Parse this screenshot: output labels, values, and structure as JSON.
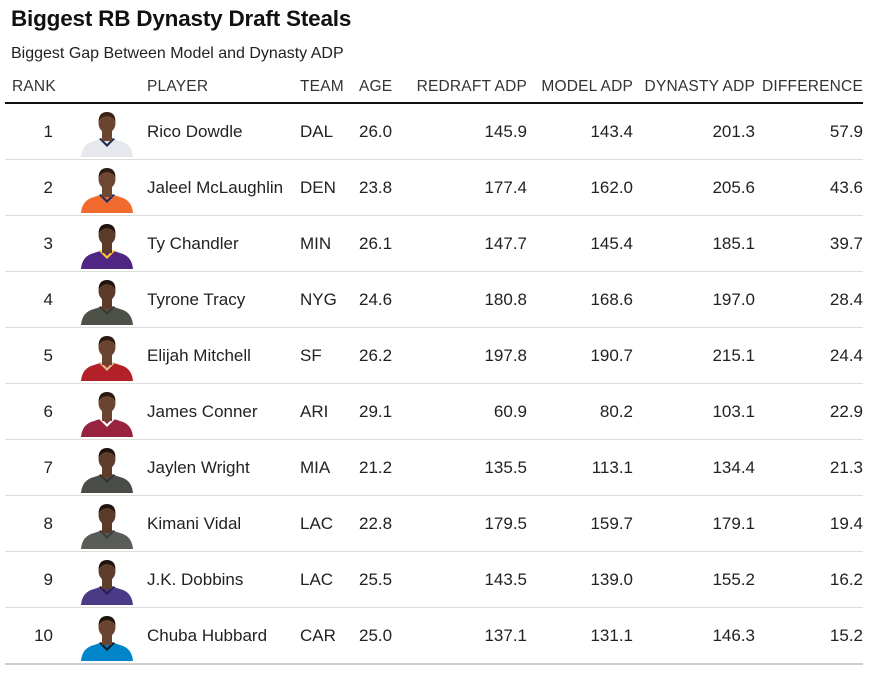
{
  "chart_data": {
    "type": "table",
    "title": "Biggest RB Dynasty Draft Steals",
    "subtitle": "Biggest Gap Between Model and Dynasty ADP",
    "columns": {
      "rank": "RANK",
      "player": "PLAYER",
      "team": "TEAM",
      "age": "AGE",
      "redraft_adp": "REDRAFT ADP",
      "model_adp": "MODEL ADP",
      "dynasty_adp": "DYNASTY ADP",
      "difference": "DIFFERENCE"
    },
    "rows": [
      {
        "rank": "1",
        "player": "Rico Dowdle",
        "team": "DAL",
        "age": "26.0",
        "redraft_adp": "145.9",
        "model_adp": "143.4",
        "dynasty_adp": "201.3",
        "difference": "57.9",
        "jersey": "#e6e8ee",
        "trim": "#1d2b4f",
        "skin": "#6b4530",
        "hair": "#3a2418"
      },
      {
        "rank": "2",
        "player": "Jaleel McLaughlin",
        "team": "DEN",
        "age": "23.8",
        "redraft_adp": "177.4",
        "model_adp": "162.0",
        "dynasty_adp": "205.6",
        "difference": "43.6",
        "jersey": "#f26b2e",
        "trim": "#1d2f5e",
        "skin": "#6e4733",
        "hair": "#2c1d15"
      },
      {
        "rank": "3",
        "player": "Ty Chandler",
        "team": "MIN",
        "age": "26.1",
        "redraft_adp": "147.7",
        "model_adp": "145.4",
        "dynasty_adp": "185.1",
        "difference": "39.7",
        "jersey": "#4f2683",
        "trim": "#ffc62f",
        "skin": "#5a3a28",
        "hair": "#1e140e"
      },
      {
        "rank": "4",
        "player": "Tyrone Tracy",
        "team": "NYG",
        "age": "24.6",
        "redraft_adp": "180.8",
        "model_adp": "168.6",
        "dynasty_adp": "197.0",
        "difference": "28.4",
        "jersey": "#4d5148",
        "trim": "#383b34",
        "skin": "#5c3b29",
        "hair": "#1e140e"
      },
      {
        "rank": "5",
        "player": "Elijah Mitchell",
        "team": "SF",
        "age": "26.2",
        "redraft_adp": "197.8",
        "model_adp": "190.7",
        "dynasty_adp": "215.1",
        "difference": "24.4",
        "jersey": "#b3202a",
        "trim": "#d8c28a",
        "skin": "#6a4431",
        "hair": "#2a1b13"
      },
      {
        "rank": "6",
        "player": "James Conner",
        "team": "ARI",
        "age": "29.1",
        "redraft_adp": "60.9",
        "model_adp": "80.2",
        "dynasty_adp": "103.1",
        "difference": "22.9",
        "jersey": "#97233f",
        "trim": "#ffffff",
        "skin": "#6b4532",
        "hair": "#2a1b13"
      },
      {
        "rank": "7",
        "player": "Jaylen Wright",
        "team": "MIA",
        "age": "21.2",
        "redraft_adp": "135.5",
        "model_adp": "113.1",
        "dynasty_adp": "134.4",
        "difference": "21.3",
        "jersey": "#4a4d47",
        "trim": "#333531",
        "skin": "#5e3d2b",
        "hair": "#1e140e"
      },
      {
        "rank": "8",
        "player": "Kimani Vidal",
        "team": "LAC",
        "age": "22.8",
        "redraft_adp": "179.5",
        "model_adp": "159.7",
        "dynasty_adp": "179.1",
        "difference": "19.4",
        "jersey": "#5a5d57",
        "trim": "#3c3e3a",
        "skin": "#5a3a28",
        "hair": "#1e140e"
      },
      {
        "rank": "9",
        "player": "J.K. Dobbins",
        "team": "LAC",
        "age": "25.5",
        "redraft_adp": "143.5",
        "model_adp": "139.0",
        "dynasty_adp": "155.2",
        "difference": "16.2",
        "jersey": "#4b3a86",
        "trim": "#2a1f55",
        "skin": "#5e3d2b",
        "hair": "#1e140e"
      },
      {
        "rank": "10",
        "player": "Chuba Hubbard",
        "team": "CAR",
        "age": "25.0",
        "redraft_adp": "137.1",
        "model_adp": "131.1",
        "dynasty_adp": "146.3",
        "difference": "15.2",
        "jersey": "#0085ca",
        "trim": "#101820",
        "skin": "#6a4431",
        "hair": "#1e140e"
      }
    ]
  }
}
